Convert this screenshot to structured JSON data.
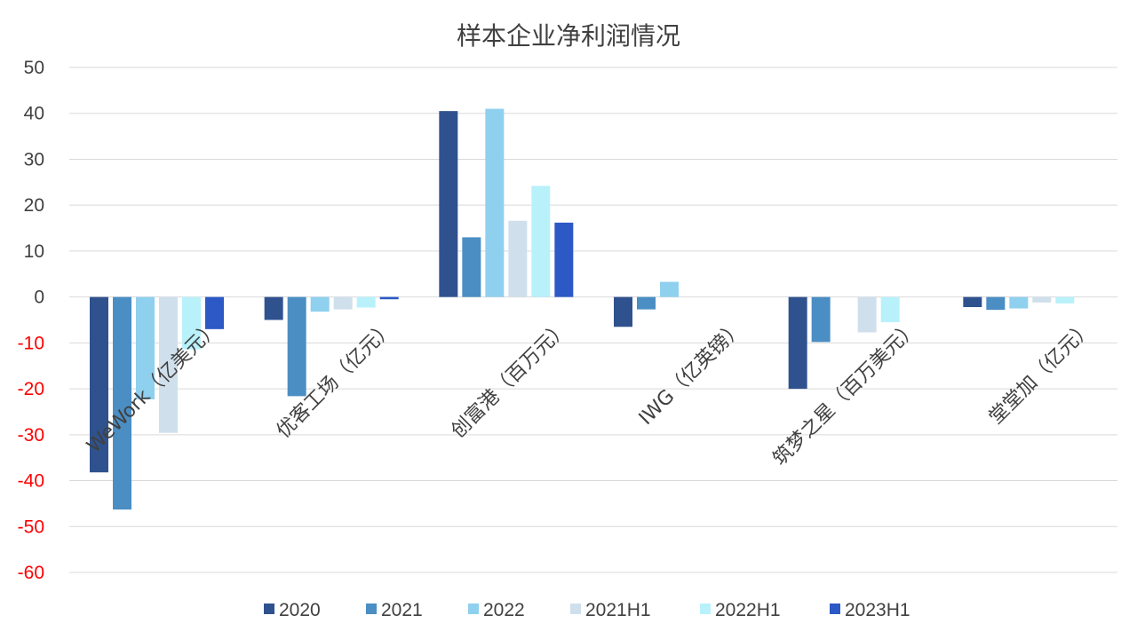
{
  "chart_data": {
    "type": "bar",
    "title": "样本企业净利润情况",
    "categories": [
      "WeWork（亿美元）",
      "优客工场（亿元）",
      "创富港（百万元）",
      "IWG（亿英镑）",
      "筑梦之星（百万美元）",
      "堂堂加（亿元）"
    ],
    "series": [
      {
        "name": "2020",
        "color": "#2f528f",
        "values": [
          -38.2,
          -5.0,
          40.5,
          -6.5,
          -20.0,
          -2.2
        ]
      },
      {
        "name": "2021",
        "color": "#4a8ec3",
        "values": [
          -46.3,
          -21.6,
          13.0,
          -2.7,
          -9.8,
          -2.8
        ]
      },
      {
        "name": "2022",
        "color": "#8fd0ef",
        "values": [
          -22.3,
          -3.2,
          41.0,
          3.3,
          null,
          -2.5
        ]
      },
      {
        "name": "2021H1",
        "color": "#cfe0ec",
        "values": [
          -29.6,
          -2.7,
          16.6,
          null,
          -7.7,
          -1.2
        ]
      },
      {
        "name": "2022H1",
        "color": "#b9f1fb",
        "values": [
          -11.4,
          -2.3,
          24.2,
          null,
          -5.5,
          -1.4
        ]
      },
      {
        "name": "2023H1",
        "color": "#2d59c7",
        "values": [
          -7.0,
          -0.5,
          16.2,
          null,
          null,
          null
        ]
      }
    ],
    "ylim": [
      -60,
      50
    ],
    "yticks": [
      50,
      40,
      30,
      20,
      10,
      0,
      -10,
      -20,
      -30,
      -40,
      -50,
      -60
    ],
    "negative_tick_color": "#ff0000",
    "positive_tick_color": "#404040",
    "grid": true,
    "legend_position": "bottom"
  }
}
